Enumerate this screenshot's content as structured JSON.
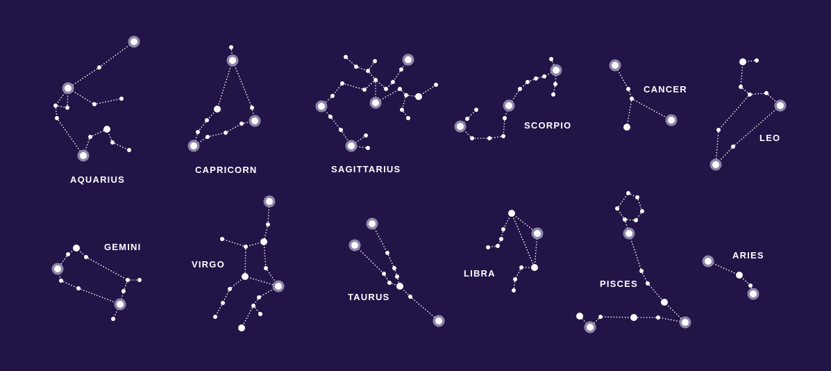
{
  "colors": {
    "background": "#231447",
    "star": "#ffffff",
    "halo": "#8d86a9"
  },
  "constellations": [
    {
      "id": "aquarius",
      "name": "AQUARIUS"
    },
    {
      "id": "capricorn",
      "name": "CAPRICORN"
    },
    {
      "id": "sagittarius",
      "name": "SAGITTARIUS"
    },
    {
      "id": "scorpio",
      "name": "SCORPIO"
    },
    {
      "id": "cancer",
      "name": "CANCER"
    },
    {
      "id": "leo",
      "name": "LEO"
    },
    {
      "id": "gemini",
      "name": "GEMINI"
    },
    {
      "id": "virgo",
      "name": "VIRGO"
    },
    {
      "id": "taurus",
      "name": "TAURUS"
    },
    {
      "id": "libra",
      "name": "LIBRA"
    },
    {
      "id": "pisces",
      "name": "PISCES"
    },
    {
      "id": "aries",
      "name": "ARIES"
    }
  ]
}
